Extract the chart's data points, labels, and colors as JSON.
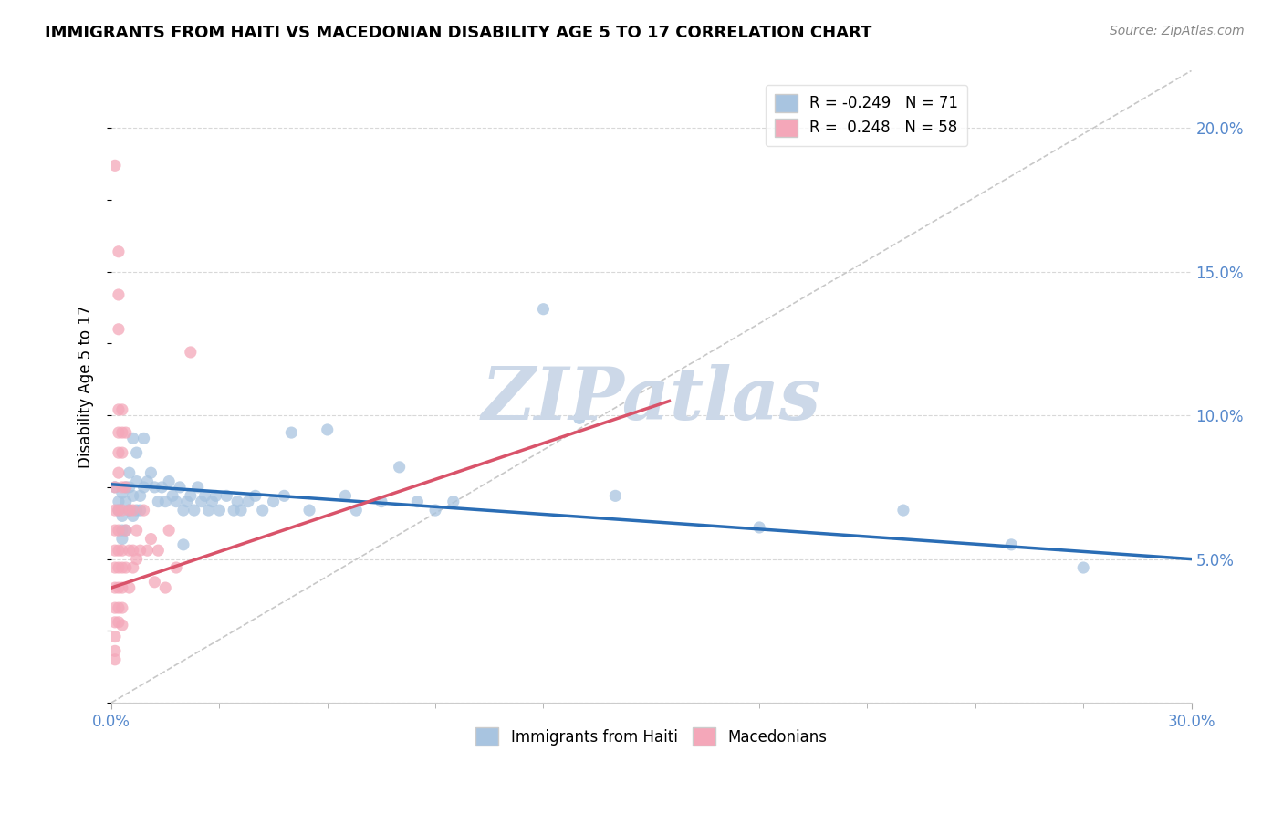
{
  "title": "IMMIGRANTS FROM HAITI VS MACEDONIAN DISABILITY AGE 5 TO 17 CORRELATION CHART",
  "source": "Source: ZipAtlas.com",
  "ylabel": "Disability Age 5 to 17",
  "xlim": [
    0.0,
    0.3
  ],
  "ylim": [
    0.0,
    0.22
  ],
  "yticks_right": [
    0.05,
    0.1,
    0.15,
    0.2
  ],
  "legend_entries": [
    {
      "label": "R = -0.249   N = 71",
      "color": "#a8c4e0"
    },
    {
      "label": "R =  0.248   N = 58",
      "color": "#f4a7b9"
    }
  ],
  "haiti_scatter": [
    [
      0.001,
      0.075
    ],
    [
      0.002,
      0.07
    ],
    [
      0.002,
      0.067
    ],
    [
      0.003,
      0.073
    ],
    [
      0.003,
      0.065
    ],
    [
      0.003,
      0.06
    ],
    [
      0.003,
      0.057
    ],
    [
      0.004,
      0.075
    ],
    [
      0.004,
      0.07
    ],
    [
      0.004,
      0.06
    ],
    [
      0.005,
      0.08
    ],
    [
      0.005,
      0.075
    ],
    [
      0.005,
      0.067
    ],
    [
      0.006,
      0.092
    ],
    [
      0.006,
      0.072
    ],
    [
      0.006,
      0.065
    ],
    [
      0.007,
      0.087
    ],
    [
      0.007,
      0.077
    ],
    [
      0.007,
      0.067
    ],
    [
      0.008,
      0.072
    ],
    [
      0.008,
      0.067
    ],
    [
      0.009,
      0.092
    ],
    [
      0.009,
      0.075
    ],
    [
      0.01,
      0.077
    ],
    [
      0.011,
      0.08
    ],
    [
      0.012,
      0.075
    ],
    [
      0.013,
      0.07
    ],
    [
      0.014,
      0.075
    ],
    [
      0.015,
      0.07
    ],
    [
      0.016,
      0.077
    ],
    [
      0.017,
      0.072
    ],
    [
      0.018,
      0.07
    ],
    [
      0.019,
      0.075
    ],
    [
      0.02,
      0.067
    ],
    [
      0.02,
      0.055
    ],
    [
      0.021,
      0.07
    ],
    [
      0.022,
      0.072
    ],
    [
      0.023,
      0.067
    ],
    [
      0.024,
      0.075
    ],
    [
      0.025,
      0.07
    ],
    [
      0.026,
      0.072
    ],
    [
      0.027,
      0.067
    ],
    [
      0.028,
      0.07
    ],
    [
      0.029,
      0.072
    ],
    [
      0.03,
      0.067
    ],
    [
      0.032,
      0.072
    ],
    [
      0.034,
      0.067
    ],
    [
      0.035,
      0.07
    ],
    [
      0.036,
      0.067
    ],
    [
      0.038,
      0.07
    ],
    [
      0.04,
      0.072
    ],
    [
      0.042,
      0.067
    ],
    [
      0.045,
      0.07
    ],
    [
      0.048,
      0.072
    ],
    [
      0.05,
      0.094
    ],
    [
      0.055,
      0.067
    ],
    [
      0.06,
      0.095
    ],
    [
      0.065,
      0.072
    ],
    [
      0.068,
      0.067
    ],
    [
      0.075,
      0.07
    ],
    [
      0.08,
      0.082
    ],
    [
      0.085,
      0.07
    ],
    [
      0.09,
      0.067
    ],
    [
      0.095,
      0.07
    ],
    [
      0.12,
      0.137
    ],
    [
      0.13,
      0.099
    ],
    [
      0.14,
      0.072
    ],
    [
      0.18,
      0.061
    ],
    [
      0.22,
      0.067
    ],
    [
      0.25,
      0.055
    ],
    [
      0.27,
      0.047
    ]
  ],
  "macedonian_scatter": [
    [
      0.001,
      0.187
    ],
    [
      0.001,
      0.075
    ],
    [
      0.001,
      0.067
    ],
    [
      0.001,
      0.06
    ],
    [
      0.001,
      0.053
    ],
    [
      0.001,
      0.047
    ],
    [
      0.001,
      0.04
    ],
    [
      0.001,
      0.033
    ],
    [
      0.001,
      0.028
    ],
    [
      0.001,
      0.023
    ],
    [
      0.001,
      0.018
    ],
    [
      0.001,
      0.015
    ],
    [
      0.002,
      0.157
    ],
    [
      0.002,
      0.142
    ],
    [
      0.002,
      0.13
    ],
    [
      0.002,
      0.102
    ],
    [
      0.002,
      0.094
    ],
    [
      0.002,
      0.087
    ],
    [
      0.002,
      0.08
    ],
    [
      0.002,
      0.067
    ],
    [
      0.002,
      0.06
    ],
    [
      0.002,
      0.053
    ],
    [
      0.002,
      0.047
    ],
    [
      0.002,
      0.04
    ],
    [
      0.002,
      0.033
    ],
    [
      0.002,
      0.028
    ],
    [
      0.003,
      0.102
    ],
    [
      0.003,
      0.094
    ],
    [
      0.003,
      0.087
    ],
    [
      0.003,
      0.075
    ],
    [
      0.003,
      0.067
    ],
    [
      0.003,
      0.053
    ],
    [
      0.003,
      0.047
    ],
    [
      0.003,
      0.04
    ],
    [
      0.003,
      0.033
    ],
    [
      0.003,
      0.027
    ],
    [
      0.004,
      0.094
    ],
    [
      0.004,
      0.075
    ],
    [
      0.004,
      0.06
    ],
    [
      0.004,
      0.047
    ],
    [
      0.005,
      0.067
    ],
    [
      0.005,
      0.053
    ],
    [
      0.005,
      0.04
    ],
    [
      0.006,
      0.067
    ],
    [
      0.006,
      0.053
    ],
    [
      0.006,
      0.047
    ],
    [
      0.007,
      0.06
    ],
    [
      0.007,
      0.05
    ],
    [
      0.008,
      0.053
    ],
    [
      0.009,
      0.067
    ],
    [
      0.01,
      0.053
    ],
    [
      0.011,
      0.057
    ],
    [
      0.012,
      0.042
    ],
    [
      0.013,
      0.053
    ],
    [
      0.015,
      0.04
    ],
    [
      0.016,
      0.06
    ],
    [
      0.018,
      0.047
    ],
    [
      0.022,
      0.122
    ]
  ],
  "haiti_trendline_x": [
    0.0,
    0.3
  ],
  "haiti_trendline_y": [
    0.076,
    0.05
  ],
  "macedonian_trendline_x": [
    0.0,
    0.155
  ],
  "macedonian_trendline_y": [
    0.04,
    0.105
  ],
  "diag_line": {
    "x1": 0.0,
    "y1": 0.0,
    "x2": 0.3,
    "y2": 0.22
  },
  "scatter_color_haiti": "#a8c4e0",
  "scatter_color_macedonian": "#f4a7b9",
  "line_color_haiti": "#2a6db5",
  "line_color_macedonian": "#d9536a",
  "diag_color": "#c8c8c8",
  "watermark_text": "ZIPatlas",
  "watermark_color": "#ccd8e8",
  "background_color": "#ffffff",
  "grid_color": "#d8d8d8",
  "title_fontsize": 13,
  "tick_label_color": "#5588cc",
  "source_color": "#888888"
}
